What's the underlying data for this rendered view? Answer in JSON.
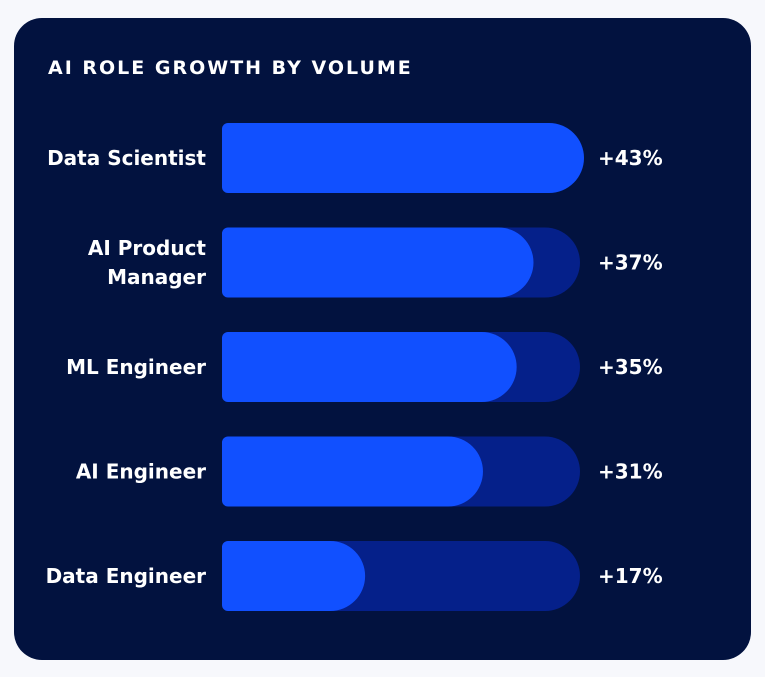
{
  "chart_data": {
    "type": "bar",
    "orientation": "horizontal",
    "title": "AI ROLE GROWTH BY VOLUME",
    "categories": [
      [
        "Data Scientist"
      ],
      [
        "AI Product",
        "Manager"
      ],
      [
        "ML Engineer"
      ],
      [
        "AI Engineer"
      ],
      [
        "Data Engineer"
      ]
    ],
    "values": [
      43,
      37,
      35,
      31,
      17
    ],
    "value_labels": [
      "+43%",
      "+37%",
      "+35%",
      "+31%",
      "+17%"
    ],
    "xlim": [
      0,
      43
    ],
    "xlabel": "",
    "ylabel": "",
    "grid": false,
    "colors": {
      "background": "#02123f",
      "bar": "#1150ff",
      "track": "#05208a",
      "text": "#ffffff"
    }
  }
}
